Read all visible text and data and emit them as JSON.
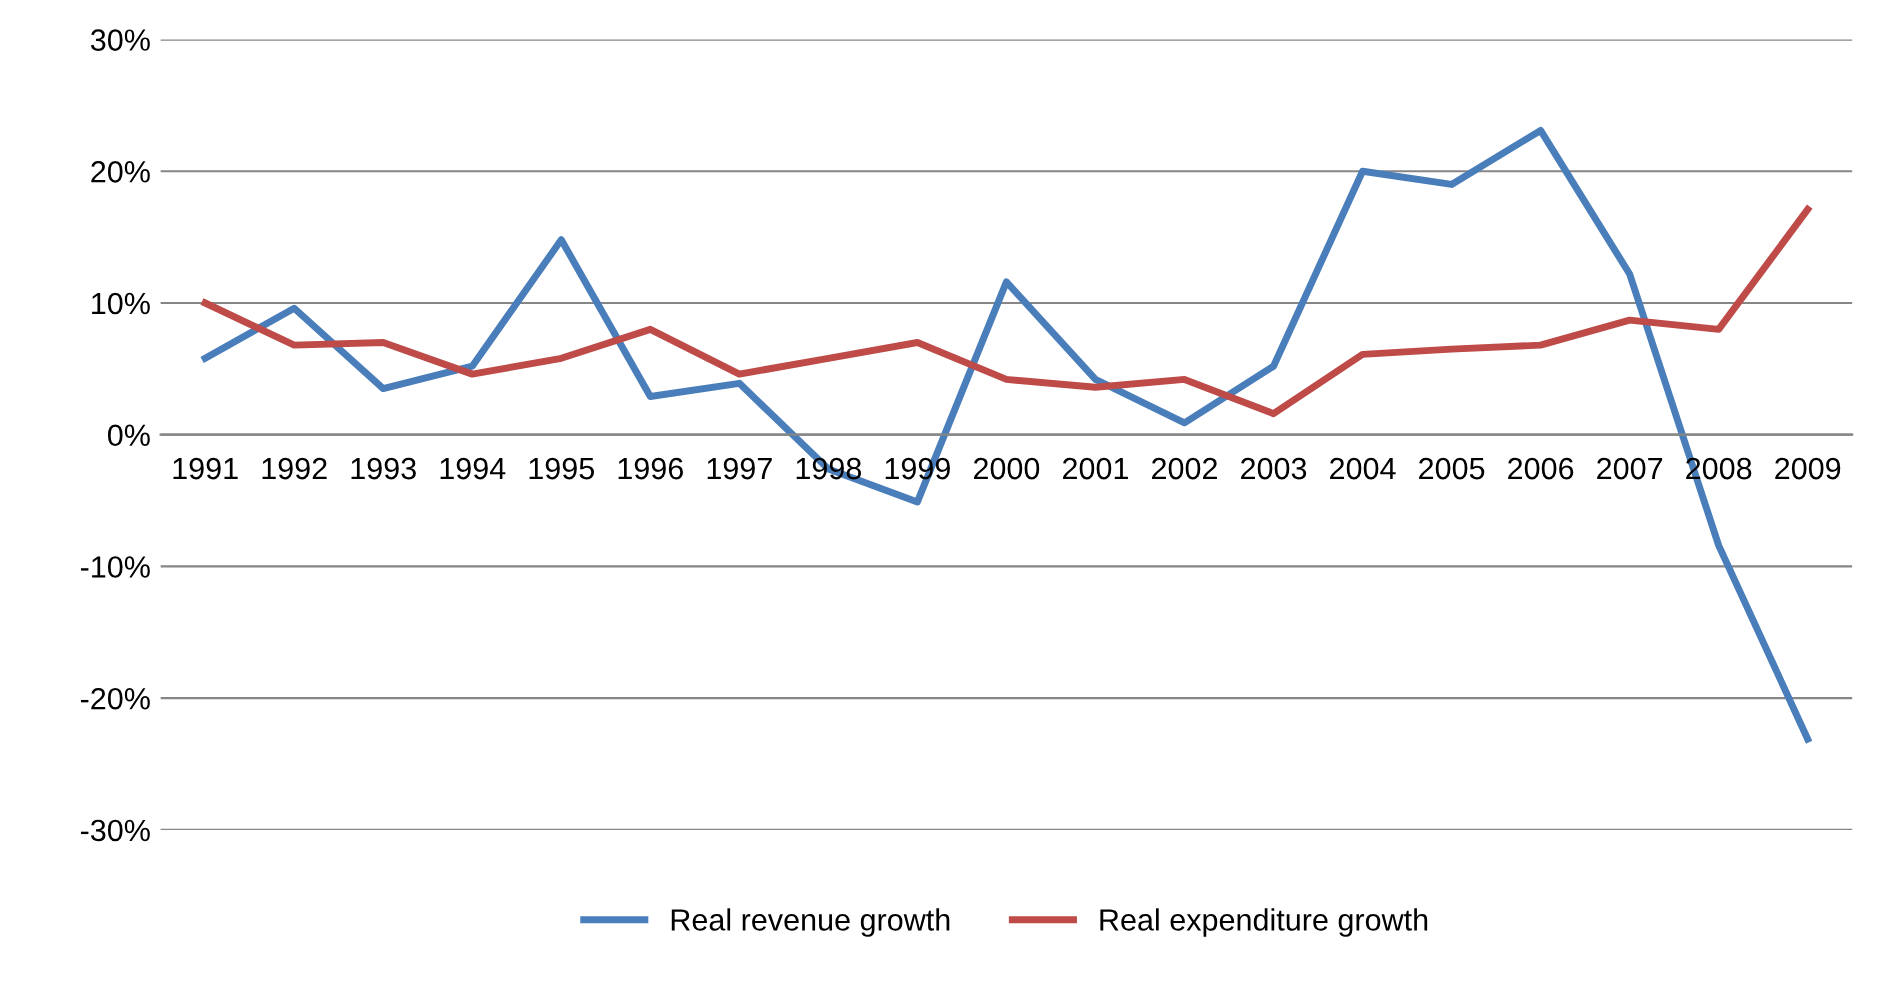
{
  "chart_data": {
    "type": "line",
    "categories": [
      "1991",
      "1992",
      "1993",
      "1994",
      "1995",
      "1996",
      "1997",
      "1998",
      "1999",
      "2000",
      "2001",
      "2002",
      "2003",
      "2004",
      "2005",
      "2006",
      "2007",
      "2008",
      "2009"
    ],
    "series": [
      {
        "name": "Real revenue growth",
        "color": "#4a7ebb",
        "values": [
          5.8,
          9.6,
          3.5,
          5.2,
          14.8,
          2.9,
          3.9,
          -2.6,
          -5.1,
          11.6,
          4.2,
          0.9,
          5.2,
          20,
          19,
          23.1,
          12.2,
          -8.4,
          -23.1
        ]
      },
      {
        "name": "Real expenditure growth",
        "color": "#be4b48",
        "values": [
          10,
          6.8,
          7,
          4.6,
          5.8,
          8,
          4.6,
          5.8,
          7,
          4.2,
          3.6,
          4.2,
          1.6,
          6.1,
          6.5,
          6.8,
          8.7,
          8,
          17.1
        ]
      }
    ],
    "ylim": [
      -30,
      30
    ],
    "yticks": [
      {
        "value": -30,
        "label": "-30%"
      },
      {
        "value": -20,
        "label": "-20%"
      },
      {
        "value": -10,
        "label": "-10%"
      },
      {
        "value": 0,
        "label": "0%"
      },
      {
        "value": 10,
        "label": "10%"
      },
      {
        "value": 20,
        "label": "20%"
      },
      {
        "value": 30,
        "label": "30%"
      }
    ],
    "grid": "y",
    "legend": "bottom",
    "marker": "none",
    "line_style": "solid"
  }
}
